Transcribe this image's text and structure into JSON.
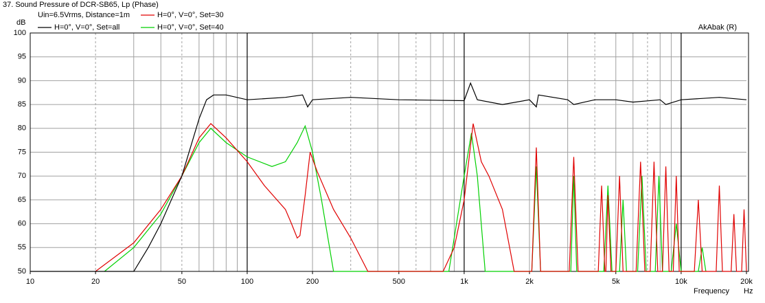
{
  "chart_data": {
    "type": "line",
    "title": "37. Sound Pressure of DCR-SB65, Lp (Phase)",
    "subtitle": "Uin=6.5Vrms, Distance=1m",
    "credit": "AkAbak (R)",
    "y_label": "dB",
    "x_label": "Frequency",
    "x_unit": "Hz",
    "xscale": "log",
    "xlim": [
      10,
      20000
    ],
    "ylim": [
      50,
      100
    ],
    "xticks": [
      10,
      20,
      50,
      100,
      200,
      500,
      {
        "value": 1000,
        "label": "1k"
      },
      {
        "value": 2000,
        "label": "2k"
      },
      {
        "value": 5000,
        "label": "5k"
      },
      {
        "value": 10000,
        "label": "10k"
      },
      {
        "value": 20000,
        "label": "20k"
      }
    ],
    "yticks": [
      50,
      55,
      60,
      65,
      70,
      75,
      80,
      85,
      90,
      95,
      100
    ],
    "xgrid_major": [
      100,
      1000,
      10000
    ],
    "xgrid_minor": [
      20,
      30,
      40,
      50,
      60,
      70,
      80,
      90,
      200,
      300,
      400,
      500,
      600,
      700,
      800,
      900,
      2000,
      3000,
      4000,
      5000,
      6000,
      7000,
      8000,
      9000
    ],
    "grid": true,
    "series": [
      {
        "name": "H=0°, V=0°, Set=all",
        "color": "#000000",
        "x": [
          10,
          20,
          30,
          35,
          40,
          50,
          60,
          65,
          70,
          80,
          100,
          150,
          180,
          190,
          200,
          300,
          500,
          1000,
          1070,
          1150,
          1500,
          2000,
          2150,
          2200,
          3000,
          3200,
          4000,
          5000,
          6000,
          8000,
          8500,
          10000,
          15000,
          20000
        ],
        "values": [
          50,
          50,
          50,
          55,
          60,
          70,
          82,
          86,
          87,
          87,
          86,
          86.5,
          87,
          84.5,
          86,
          86.5,
          86,
          85.8,
          89.5,
          86,
          85,
          86,
          84.5,
          87,
          86,
          85,
          86,
          86,
          85.5,
          86,
          85,
          86,
          86.5,
          86
        ]
      },
      {
        "name": "H=0°, V=0°, Set=30",
        "color": "#e00000",
        "x": [
          20,
          30,
          40,
          50,
          60,
          68,
          80,
          100,
          120,
          150,
          160,
          170,
          175,
          185,
          195,
          210,
          250,
          300,
          360,
          800,
          900,
          1000,
          1100,
          1200,
          1300,
          1500,
          1700,
          2050,
          2150,
          2250,
          3050,
          3200,
          3350,
          4150,
          4300,
          4450,
          4500,
          4600,
          4750,
          5000,
          5200,
          5400,
          6200,
          6500,
          6800,
          7200,
          7500,
          7800,
          8200,
          8500,
          8800,
          9200,
          9500,
          9800,
          11500,
          12000,
          12500,
          14500,
          15000,
          15500,
          17000,
          17500,
          18000,
          19000,
          19500,
          20000
        ],
        "values": [
          50,
          56,
          63,
          70,
          78,
          81,
          78,
          73,
          68,
          63,
          60,
          57,
          57.5,
          66,
          75,
          71,
          63,
          57,
          50,
          50,
          55,
          65,
          81,
          73,
          70,
          63,
          50,
          50,
          76,
          50,
          50,
          74,
          50,
          50,
          68,
          50,
          50,
          66,
          50,
          50,
          70,
          50,
          50,
          73,
          50,
          50,
          73,
          50,
          50,
          72,
          50,
          50,
          70,
          50,
          50,
          65,
          50,
          50,
          68,
          50,
          50,
          62,
          50,
          50,
          63,
          50
        ]
      },
      {
        "name": "H=0°, V=0°, Set=40",
        "color": "#00d000",
        "x": [
          22,
          30,
          40,
          50,
          60,
          68,
          80,
          100,
          130,
          150,
          170,
          185,
          200,
          220,
          250,
          850,
          1000,
          1080,
          1150,
          1250,
          2050,
          2150,
          2250,
          3100,
          3200,
          3300,
          4400,
          4600,
          4800,
          5200,
          5400,
          5600,
          6300,
          6600,
          6900,
          7600,
          7900,
          8200,
          9000,
          9500,
          10000,
          12000,
          12500,
          13000
        ],
        "values": [
          50,
          55,
          62,
          70,
          77,
          80,
          77,
          74,
          72,
          73,
          77,
          80.5,
          75,
          65,
          50,
          50,
          70,
          79,
          70,
          50,
          50,
          72,
          50,
          50,
          70,
          50,
          50,
          68,
          50,
          50,
          65,
          50,
          50,
          70,
          50,
          50,
          70,
          50,
          50,
          60,
          50,
          50,
          55,
          50
        ]
      }
    ]
  }
}
